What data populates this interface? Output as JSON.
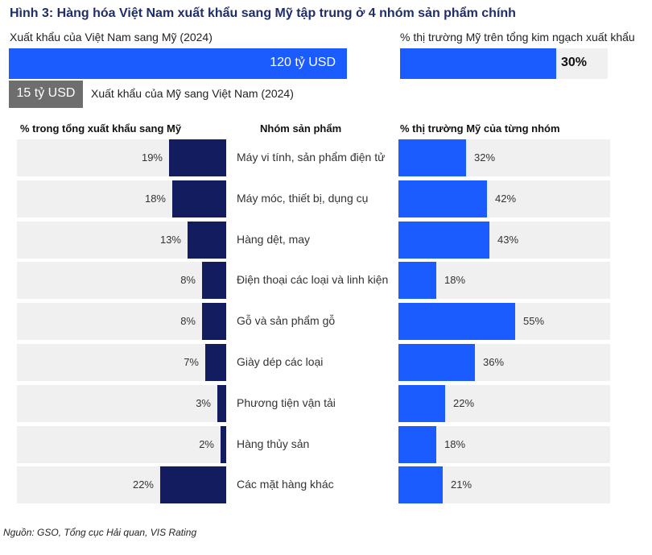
{
  "title": "Hình 3: Hàng hóa Việt Nam xuất khẩu sang Mỹ tập trung ở 4 nhóm sản phẩm chính",
  "export_vn_us": {
    "label": "Xuất khẩu của Việt Nam sang Mỹ (2024)",
    "value_text": "120 tỷ USD",
    "value": 120
  },
  "export_us_vn": {
    "label": "Xuất khẩu của Mỹ sang Việt Nam (2024)",
    "value_text": "15 tỷ USD",
    "value": 15
  },
  "us_share": {
    "label": "% thị trường Mỹ trên tổng kim ngạch xuất khẩu",
    "value_text": "30%",
    "value": 30
  },
  "colors": {
    "bright_blue": "#1a5cff",
    "navy": "#131c5e",
    "gray": "#6e6e6e",
    "track": "#f0f0f0"
  },
  "source": "Nguồn: GSO, Tổng cục Hải quan, VIS Rating",
  "chart_data": {
    "type": "bar",
    "title": "Hình 3: Hàng hóa Việt Nam xuất khẩu sang Mỹ tập trung ở 4 nhóm sản phẩm chính",
    "category_header": "Nhóm sản phẩm",
    "categories": [
      "Máy vi tính, sản phẩm điện tử",
      "Máy móc, thiết bị, dụng cụ",
      "Hàng dệt, may",
      "Điện thoại các loại và linh kiện",
      "Gỗ và sản phẩm gỗ",
      "Giày dép các loại",
      "Phương tiện vận tải",
      "Hàng thủy sản",
      "Các mặt hàng khác"
    ],
    "series": [
      {
        "name": "% trong tổng xuất khẩu sang Mỹ",
        "values": [
          19,
          18,
          13,
          8,
          8,
          7,
          3,
          2,
          22
        ],
        "labels": [
          "19%",
          "18%",
          "13%",
          "8%",
          "8%",
          "7%",
          "3%",
          "2%",
          "22%"
        ],
        "direction": "right-to-left",
        "ylim": [
          0,
          70
        ]
      },
      {
        "name": "% thị trường Mỹ của từng nhóm",
        "values": [
          32,
          42,
          43,
          18,
          55,
          36,
          22,
          18,
          21
        ],
        "labels": [
          "32%",
          "42%",
          "43%",
          "18%",
          "55%",
          "36%",
          "22%",
          "18%",
          "21%"
        ],
        "direction": "left-to-right",
        "ylim": [
          0,
          100
        ]
      }
    ]
  }
}
